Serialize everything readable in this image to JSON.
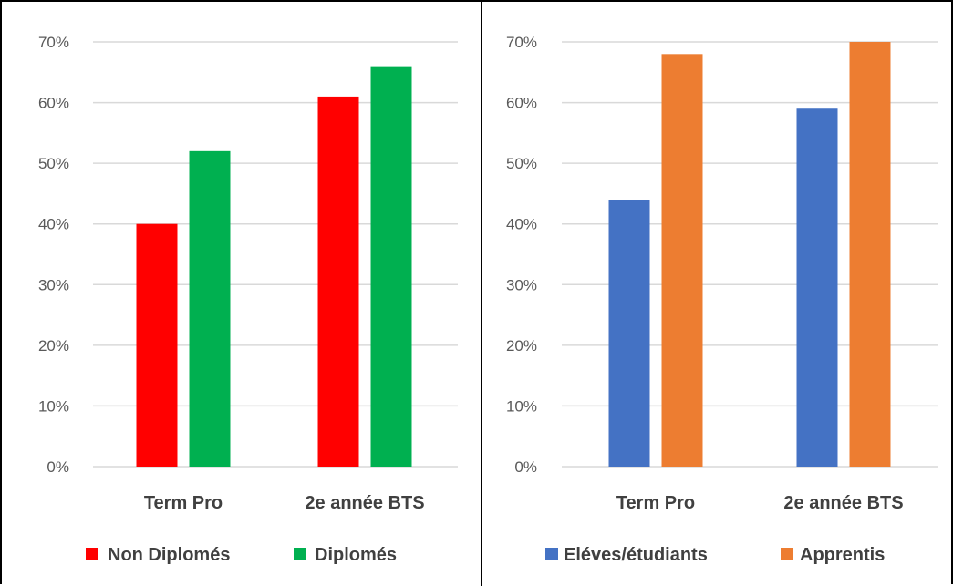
{
  "chart_data": [
    {
      "type": "bar",
      "categories": [
        "Term Pro",
        "2e année BTS"
      ],
      "series": [
        {
          "name": "Non Diplomés",
          "values": [
            0.4,
            0.61
          ],
          "color": "#ff0000"
        },
        {
          "name": "Diplomés",
          "values": [
            0.52,
            0.66
          ],
          "color": "#00b050"
        }
      ],
      "ylim": [
        0,
        0.7
      ],
      "yticks": [
        "0%",
        "10%",
        "20%",
        "30%",
        "40%",
        "50%",
        "60%",
        "70%"
      ],
      "grid": true,
      "legend": "bottom"
    },
    {
      "type": "bar",
      "categories": [
        "Term Pro",
        "2e année BTS"
      ],
      "series": [
        {
          "name": "Eléves/étudiants",
          "values": [
            0.44,
            0.59
          ],
          "color": "#4472c4"
        },
        {
          "name": "Apprentis",
          "values": [
            0.68,
            0.7
          ],
          "color": "#ed7d31"
        }
      ],
      "ylim": [
        0,
        0.7
      ],
      "yticks": [
        "0%",
        "10%",
        "20%",
        "30%",
        "40%",
        "50%",
        "60%",
        "70%"
      ],
      "grid": true,
      "legend": "bottom"
    }
  ]
}
